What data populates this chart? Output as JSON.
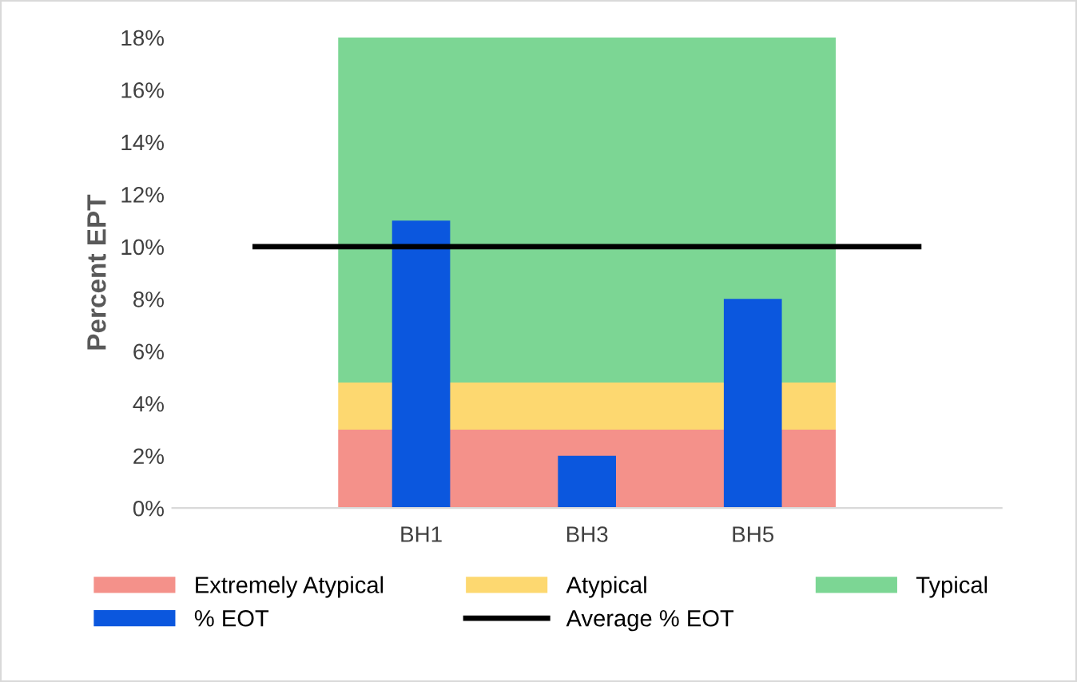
{
  "chart_data": {
    "type": "bar",
    "ylabel": "Percent EPT",
    "categories": [
      null,
      "BH1",
      "BH3",
      "BH5",
      null
    ],
    "bands": [
      {
        "axis": "y",
        "from": 0,
        "to": 3,
        "label": "Extremely Atypical",
        "color": "#f4918a"
      },
      {
        "axis": "y",
        "from": 3,
        "to": 4.8,
        "label": "Atypical",
        "color": "#fdd870"
      },
      {
        "axis": "y",
        "from": 4.8,
        "to": 18,
        "label": "Typical",
        "color": "#7cd694"
      }
    ],
    "series": [
      {
        "name": "% EOT",
        "color": "#0b57de",
        "values": [
          null,
          11,
          2,
          8,
          null
        ]
      },
      {
        "name": "Average % EOT",
        "color": "#000000",
        "type": "line",
        "values": [
          10,
          10,
          10,
          10,
          10
        ]
      }
    ],
    "ylim": [
      0,
      18
    ],
    "yticks": [
      {
        "value": 0,
        "label": "0%"
      },
      {
        "value": 2,
        "label": "2%"
      },
      {
        "value": 4,
        "label": "4%"
      },
      {
        "value": 6,
        "label": "6%"
      },
      {
        "value": 8,
        "label": "8%"
      },
      {
        "value": 10,
        "label": "10%"
      },
      {
        "value": 12,
        "label": "12%"
      },
      {
        "value": 14,
        "label": "14%"
      },
      {
        "value": 16,
        "label": "16%"
      },
      {
        "value": 18,
        "label": "18%"
      }
    ],
    "grid": false,
    "legend": "bottom"
  }
}
